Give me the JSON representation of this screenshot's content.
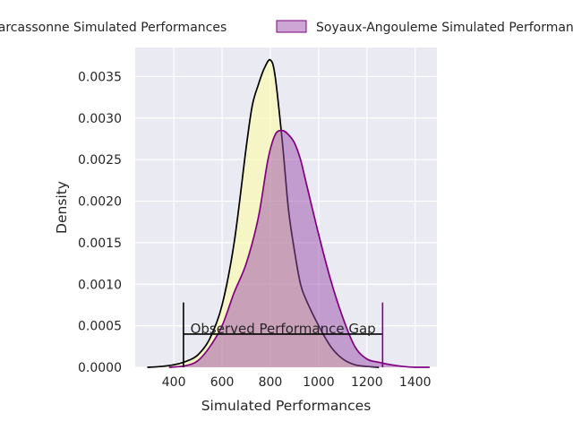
{
  "chart_data": {
    "type": "area",
    "xlabel": "Simulated Performances",
    "ylabel": "Density",
    "xlim": [
      240,
      1490
    ],
    "ylim": [
      0,
      0.00385
    ],
    "x_ticks": [
      {
        "value": 400,
        "label": "400"
      },
      {
        "value": 600,
        "label": "600"
      },
      {
        "value": 800,
        "label": "800"
      },
      {
        "value": 1000,
        "label": "1000"
      },
      {
        "value": 1200,
        "label": "1200"
      },
      {
        "value": 1400,
        "label": "1400"
      }
    ],
    "y_ticks": [
      {
        "value": 0.0,
        "label": "0.0000"
      },
      {
        "value": 0.0005,
        "label": "0.0005"
      },
      {
        "value": 0.001,
        "label": "0.0010"
      },
      {
        "value": 0.0015,
        "label": "0.0015"
      },
      {
        "value": 0.002,
        "label": "0.0020"
      },
      {
        "value": 0.0025,
        "label": "0.0025"
      },
      {
        "value": 0.003,
        "label": "0.0030"
      },
      {
        "value": 0.0035,
        "label": "0.0035"
      }
    ],
    "grid": true,
    "background": "#eaeaf2",
    "legend": {
      "placement": "top, outside plot"
    },
    "series": [
      {
        "name": "Carcassonne Simulated Performances",
        "fill": "#ffff99",
        "line": "#000000",
        "x": [
          290,
          350,
          400,
          450,
          500,
          550,
          600,
          650,
          700,
          725,
          750,
          775,
          800,
          820,
          850,
          875,
          900,
          925,
          950,
          1000,
          1050,
          1100,
          1150,
          1200,
          1250
        ],
        "y": [
          0.0,
          1e-05,
          3e-05,
          7e-05,
          0.00015,
          0.00035,
          0.00075,
          0.0015,
          0.00265,
          0.00315,
          0.0034,
          0.0036,
          0.0037,
          0.0035,
          0.0027,
          0.0019,
          0.0014,
          0.001,
          0.0008,
          0.0005,
          0.00025,
          0.0001,
          3e-05,
          1e-05,
          0.0
        ]
      },
      {
        "name": "Soyaux-Angouleme Simulated Performances",
        "fill": "#9b4dab",
        "line": "#800080",
        "x": [
          380,
          450,
          500,
          550,
          600,
          650,
          700,
          750,
          790,
          820,
          850,
          875,
          900,
          925,
          950,
          1000,
          1050,
          1100,
          1150,
          1200,
          1250,
          1300,
          1350,
          1400,
          1460
        ],
        "y": [
          0.0,
          2e-05,
          8e-05,
          0.00025,
          0.0005,
          0.0009,
          0.00125,
          0.0018,
          0.0025,
          0.0028,
          0.00285,
          0.0028,
          0.0027,
          0.0025,
          0.0022,
          0.0016,
          0.00105,
          0.0006,
          0.00025,
          0.0001,
          6e-05,
          3e-05,
          1e-05,
          0.0,
          0.0
        ]
      }
    ],
    "annotation": {
      "text": "Observed Performance Gap",
      "x_start": 440,
      "x_end": 1265,
      "y": 0.0004,
      "marker_height": 0.00078
    }
  }
}
